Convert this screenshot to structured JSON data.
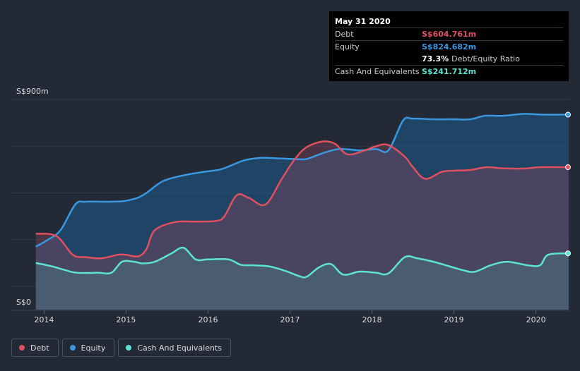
{
  "tooltip": {
    "date": "May 31 2020",
    "debt_label": "Debt",
    "debt_value": "S$604.761m",
    "equity_label": "Equity",
    "equity_value": "S$824.682m",
    "ratio_value": "73.3%",
    "ratio_label": "Debt/Equity Ratio",
    "cash_label": "Cash And Equivalents",
    "cash_value": "S$241.712m"
  },
  "legend": {
    "debt": "Debt",
    "equity": "Equity",
    "cash": "Cash And Equivalents"
  },
  "colors": {
    "debt": "#e0505f",
    "equity": "#3a97e0",
    "cash": "#5ee3d2",
    "background": "#232a36"
  },
  "chart_data": {
    "type": "area",
    "title": "",
    "xlabel": "",
    "ylabel": "",
    "y_top_label": "S$900m",
    "y_bottom_label": "S$0",
    "ylim": [
      0,
      900
    ],
    "xlim": [
      2013.85,
      2020.4
    ],
    "x_ticks": [
      2014,
      2015,
      2016,
      2017,
      2018,
      2019,
      2020
    ],
    "x_tick_labels": [
      "2014",
      "2015",
      "2016",
      "2017",
      "2018",
      "2019",
      "2020"
    ],
    "series": [
      {
        "name": "Equity",
        "key": "equity",
        "x": [
          2013.9,
          2014.05,
          2014.2,
          2014.38,
          2014.5,
          2014.75,
          2014.95,
          2015.05,
          2015.15,
          2015.25,
          2015.45,
          2015.7,
          2015.95,
          2016.15,
          2016.3,
          2016.45,
          2016.65,
          2016.85,
          2017.05,
          2017.2,
          2017.4,
          2017.6,
          2017.85,
          2018.05,
          2018.2,
          2018.38,
          2018.5,
          2018.75,
          2019.0,
          2019.2,
          2019.38,
          2019.6,
          2019.85,
          2020.1,
          2020.4
        ],
        "values": [
          270,
          300,
          340,
          450,
          462,
          462,
          464,
          470,
          480,
          500,
          550,
          575,
          590,
          600,
          620,
          640,
          650,
          648,
          645,
          645,
          670,
          688,
          682,
          688,
          682,
          810,
          818,
          815,
          815,
          815,
          830,
          830,
          838,
          835,
          835
        ]
      },
      {
        "name": "Debt",
        "key": "debt",
        "x": [
          2013.9,
          2014.15,
          2014.35,
          2014.5,
          2014.7,
          2014.9,
          2015.0,
          2015.15,
          2015.25,
          2015.35,
          2015.6,
          2015.85,
          2016.1,
          2016.2,
          2016.35,
          2016.5,
          2016.7,
          2016.9,
          2017.05,
          2017.2,
          2017.4,
          2017.55,
          2017.7,
          2017.9,
          2018.05,
          2018.2,
          2018.4,
          2018.5,
          2018.65,
          2018.85,
          2019.0,
          2019.2,
          2019.4,
          2019.6,
          2019.85,
          2020.05,
          2020.4
        ],
        "values": [
          325,
          315,
          235,
          225,
          220,
          235,
          235,
          228,
          260,
          340,
          375,
          377,
          380,
          400,
          490,
          478,
          450,
          560,
          640,
          695,
          720,
          710,
          665,
          680,
          700,
          705,
          655,
          610,
          560,
          590,
          595,
          598,
          610,
          605,
          604,
          610,
          610
        ]
      },
      {
        "name": "Cash And Equivalents",
        "key": "cash",
        "x": [
          2013.9,
          2014.1,
          2014.25,
          2014.4,
          2014.65,
          2014.82,
          2014.95,
          2015.1,
          2015.2,
          2015.35,
          2015.55,
          2015.7,
          2015.85,
          2016.0,
          2016.25,
          2016.4,
          2016.55,
          2016.75,
          2016.95,
          2017.1,
          2017.2,
          2017.35,
          2017.5,
          2017.65,
          2017.85,
          2018.05,
          2018.2,
          2018.4,
          2018.55,
          2018.75,
          2018.95,
          2019.1,
          2019.25,
          2019.45,
          2019.65,
          2019.9,
          2020.05,
          2020.15,
          2020.4
        ],
        "values": [
          200,
          185,
          170,
          158,
          158,
          158,
          205,
          205,
          198,
          205,
          240,
          265,
          215,
          215,
          215,
          192,
          190,
          185,
          165,
          145,
          140,
          180,
          195,
          150,
          163,
          158,
          155,
          225,
          220,
          205,
          185,
          170,
          162,
          190,
          205,
          190,
          190,
          235,
          241
        ]
      }
    ]
  }
}
